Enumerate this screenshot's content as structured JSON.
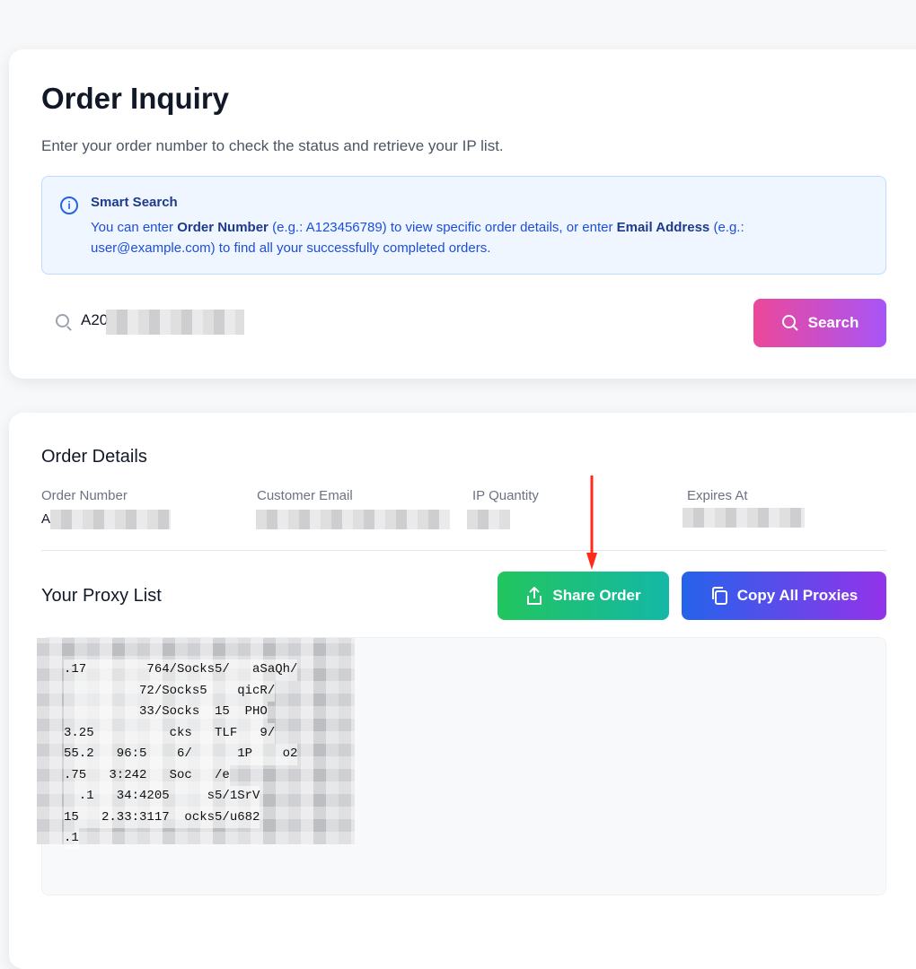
{
  "inquiry": {
    "title": "Order Inquiry",
    "subtitle": "Enter your order number to check the status and retrieve your IP list.",
    "info": {
      "icon": "info-icon",
      "title": "Smart Search",
      "text_1": "You can enter ",
      "bold_1": "Order Number",
      "text_2": " (e.g.: A123456789) to view specific order details, or enter ",
      "bold_2": "Email Address",
      "text_3": " (e.g.: user@example.com) to find all your successfully completed orders."
    },
    "search": {
      "value": "A20",
      "search_label": "Search"
    }
  },
  "details": {
    "title": "Order Details",
    "columns": [
      {
        "label": "Order Number",
        "value": "A"
      },
      {
        "label": "Customer Email"
      },
      {
        "label": "IP Quantity"
      },
      {
        "label": "Expires At"
      }
    ]
  },
  "proxy": {
    "title": "Your Proxy List",
    "share_label": "Share Order",
    "copy_label": "Copy All Proxies",
    "lines": [
      ".17        764/Socks5/   aSaQh/",
      "          72/Socks5    qicR/",
      "          33/Socks  15  PHO",
      "3.25          cks   TLF   9/",
      "55.2   96:5    6/      1P    o2",
      ".75   3:242   Soc   /e",
      "  .1   34:4205     s5/1SrV",
      "15   2.33:3117  ocks5/u682",
      ".1"
    ]
  },
  "colors": {
    "search_gradient": [
      "#ec4899",
      "#a855f7"
    ],
    "share_gradient": [
      "#22c55e",
      "#14b8a6"
    ],
    "copy_gradient": [
      "#2563eb",
      "#9333ea"
    ],
    "annotation_arrow": "#ff2a1a"
  }
}
